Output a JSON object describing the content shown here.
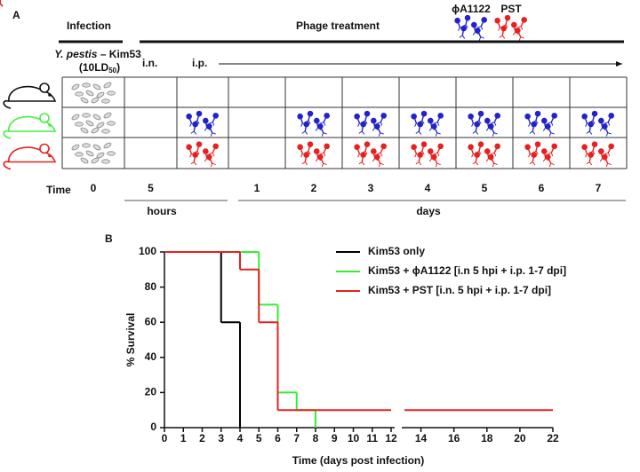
{
  "panel_a": {
    "label": "A",
    "infection": "Infection",
    "phage_treatment": "Phage treatment",
    "phages": [
      {
        "name": "ϕA1122",
        "color": "#2222cc"
      },
      {
        "name": "PST",
        "color": "#e82020"
      }
    ],
    "strain_species": "Y. pestis",
    "strain_rest": " – Kim53",
    "dose_open": "(10LD",
    "dose_sub": "50",
    "dose_close": ")",
    "routes": [
      "i.n.",
      "i.p."
    ],
    "time_label": "Time",
    "time_points": [
      "0",
      "5",
      null,
      "1",
      "2",
      "3",
      "4",
      "5",
      "6",
      "7"
    ],
    "units": [
      "hours",
      "days"
    ],
    "mouse_colors": [
      "#111111",
      "#44ee44",
      "#e82020"
    ]
  },
  "chart_data": {
    "type": "step",
    "panel_label": "B",
    "xlabel": "Time (days post infection)",
    "ylabel": "% Survival",
    "xlim": [
      0,
      22
    ],
    "ylim": [
      0,
      100
    ],
    "xticks": [
      0,
      1,
      2,
      3,
      4,
      5,
      6,
      7,
      8,
      9,
      10,
      11,
      12,
      14,
      16,
      18,
      20,
      22
    ],
    "yticks": [
      0,
      20,
      40,
      60,
      80,
      100
    ],
    "series": [
      {
        "name": "Kim53 only",
        "color": "#000000",
        "x": [
          0,
          3,
          4
        ],
        "values": [
          100,
          60,
          0
        ]
      },
      {
        "name": "Kim53 + ϕA1122 [i.n 5 hpi + i.p. 1-7 dpi]",
        "color": "#33ee33",
        "x": [
          0,
          5,
          6,
          7,
          8
        ],
        "values": [
          100,
          70,
          20,
          10,
          0
        ]
      },
      {
        "name": "Kim53 + PST [i.n. 5 hpi + i.p. 1-7 dpi]",
        "color": "#e82020",
        "x": [
          0,
          4,
          5,
          6,
          22
        ],
        "values": [
          100,
          90,
          60,
          10,
          10
        ]
      }
    ]
  }
}
